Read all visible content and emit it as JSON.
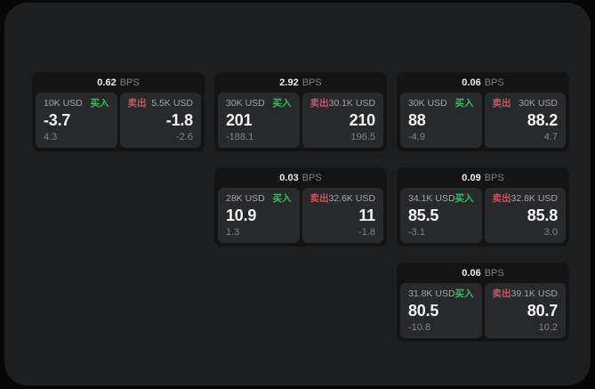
{
  "labels": {
    "buy": "买入",
    "sell": "卖出",
    "bps_unit": "BPS"
  },
  "colors": {
    "buy_green": "#2fbd64",
    "sell_red": "#cc5362",
    "window_bg": "#1d1e1f",
    "card_bg": "#141414",
    "panel_bg": "#28292b"
  },
  "cards": [
    {
      "col": 1,
      "row": 1,
      "bps": "0.62",
      "buy": {
        "amount": "10K USD",
        "value": "-3.7",
        "sub": "4.3"
      },
      "sell": {
        "amount": "5.5K USD",
        "value": "-1.8",
        "sub": "-2.6"
      }
    },
    {
      "col": 2,
      "row": 1,
      "bps": "2.92",
      "buy": {
        "amount": "30K USD",
        "value": "201",
        "sub": "-188.1"
      },
      "sell": {
        "amount": "30.1K USD",
        "value": "210",
        "sub": "196.5"
      }
    },
    {
      "col": 3,
      "row": 1,
      "bps": "0.06",
      "buy": {
        "amount": "30K USD",
        "value": "88",
        "sub": "-4.9"
      },
      "sell": {
        "amount": "30K USD",
        "value": "88.2",
        "sub": "4.7"
      }
    },
    {
      "col": 2,
      "row": 2,
      "bps": "0.03",
      "buy": {
        "amount": "28K USD",
        "value": "10.9",
        "sub": "1.3"
      },
      "sell": {
        "amount": "32.6K USD",
        "value": "11",
        "sub": "-1.8"
      }
    },
    {
      "col": 3,
      "row": 2,
      "bps": "0.09",
      "buy": {
        "amount": "34.1K USD",
        "value": "85.5",
        "sub": "-3.1"
      },
      "sell": {
        "amount": "32.8K USD",
        "value": "85.8",
        "sub": "3.0"
      }
    },
    {
      "col": 3,
      "row": 3,
      "bps": "0.06",
      "buy": {
        "amount": "31.8K USD",
        "value": "80.5",
        "sub": "-10.8"
      },
      "sell": {
        "amount": "39.1K USD",
        "value": "80.7",
        "sub": "10.2"
      }
    }
  ]
}
